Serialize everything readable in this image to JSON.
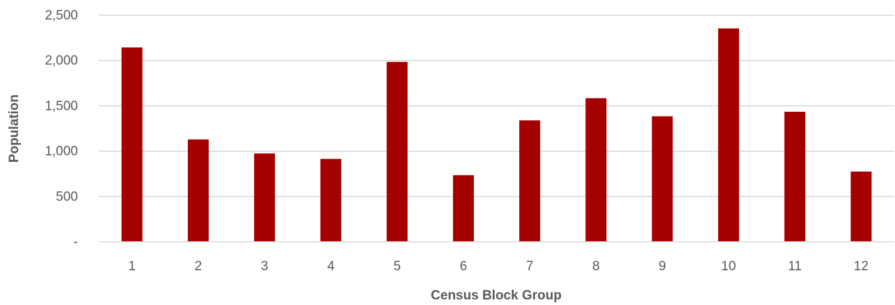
{
  "chart_data": {
    "type": "bar",
    "title": "",
    "xlabel": "Census Block Group",
    "ylabel": "Population",
    "categories": [
      "1",
      "2",
      "3",
      "4",
      "5",
      "6",
      "7",
      "8",
      "9",
      "10",
      "11",
      "12"
    ],
    "values": [
      2145,
      1130,
      975,
      915,
      1985,
      735,
      1340,
      1585,
      1385,
      2355,
      1435,
      775
    ],
    "ylim": [
      0,
      2500
    ],
    "yticks": [
      0,
      500,
      1000,
      1500,
      2000,
      2500
    ],
    "ytick_labels": [
      "-",
      "500",
      "1,000",
      "1,500",
      "2,000",
      "2,500"
    ],
    "grid": true,
    "legend": "none",
    "bar_color": "#A50000",
    "grid_color": "#D9D9D9",
    "axis_color": "#D9D9D9",
    "text_color": "#595959"
  }
}
